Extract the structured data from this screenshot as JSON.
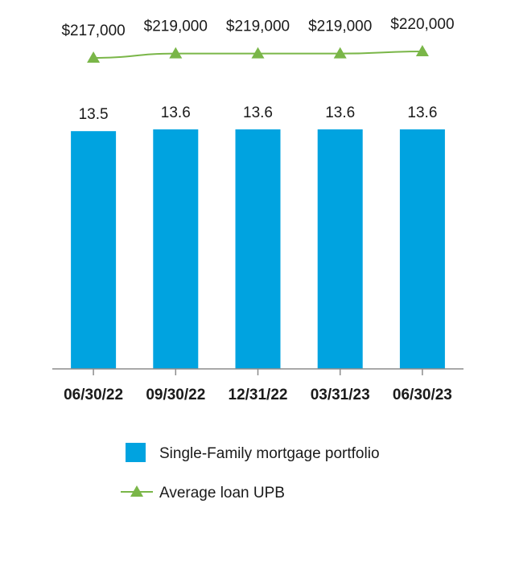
{
  "chart_data": {
    "type": "bar",
    "categories": [
      "06/30/22",
      "09/30/22",
      "12/31/22",
      "03/31/23",
      "06/30/23"
    ],
    "series": [
      {
        "name": "Single-Family mortgage portfolio",
        "type": "bar",
        "values": [
          13.5,
          13.6,
          13.6,
          13.6,
          13.6
        ],
        "labels": [
          "13.5",
          "13.6",
          "13.6",
          "13.6",
          "13.6"
        ],
        "color": "#00a3e0"
      },
      {
        "name": "Average loan UPB",
        "type": "line",
        "marker": "triangle",
        "values": [
          217000,
          219000,
          219000,
          219000,
          220000
        ],
        "labels": [
          "$217,000",
          "$219,000",
          "$219,000",
          "$219,000",
          "$220,000"
        ],
        "color": "#7ab648"
      }
    ],
    "title": "",
    "xlabel": "",
    "ylabel": "",
    "ylim": [
      0,
      13.6
    ],
    "grid": false,
    "legend_position": "bottom"
  }
}
